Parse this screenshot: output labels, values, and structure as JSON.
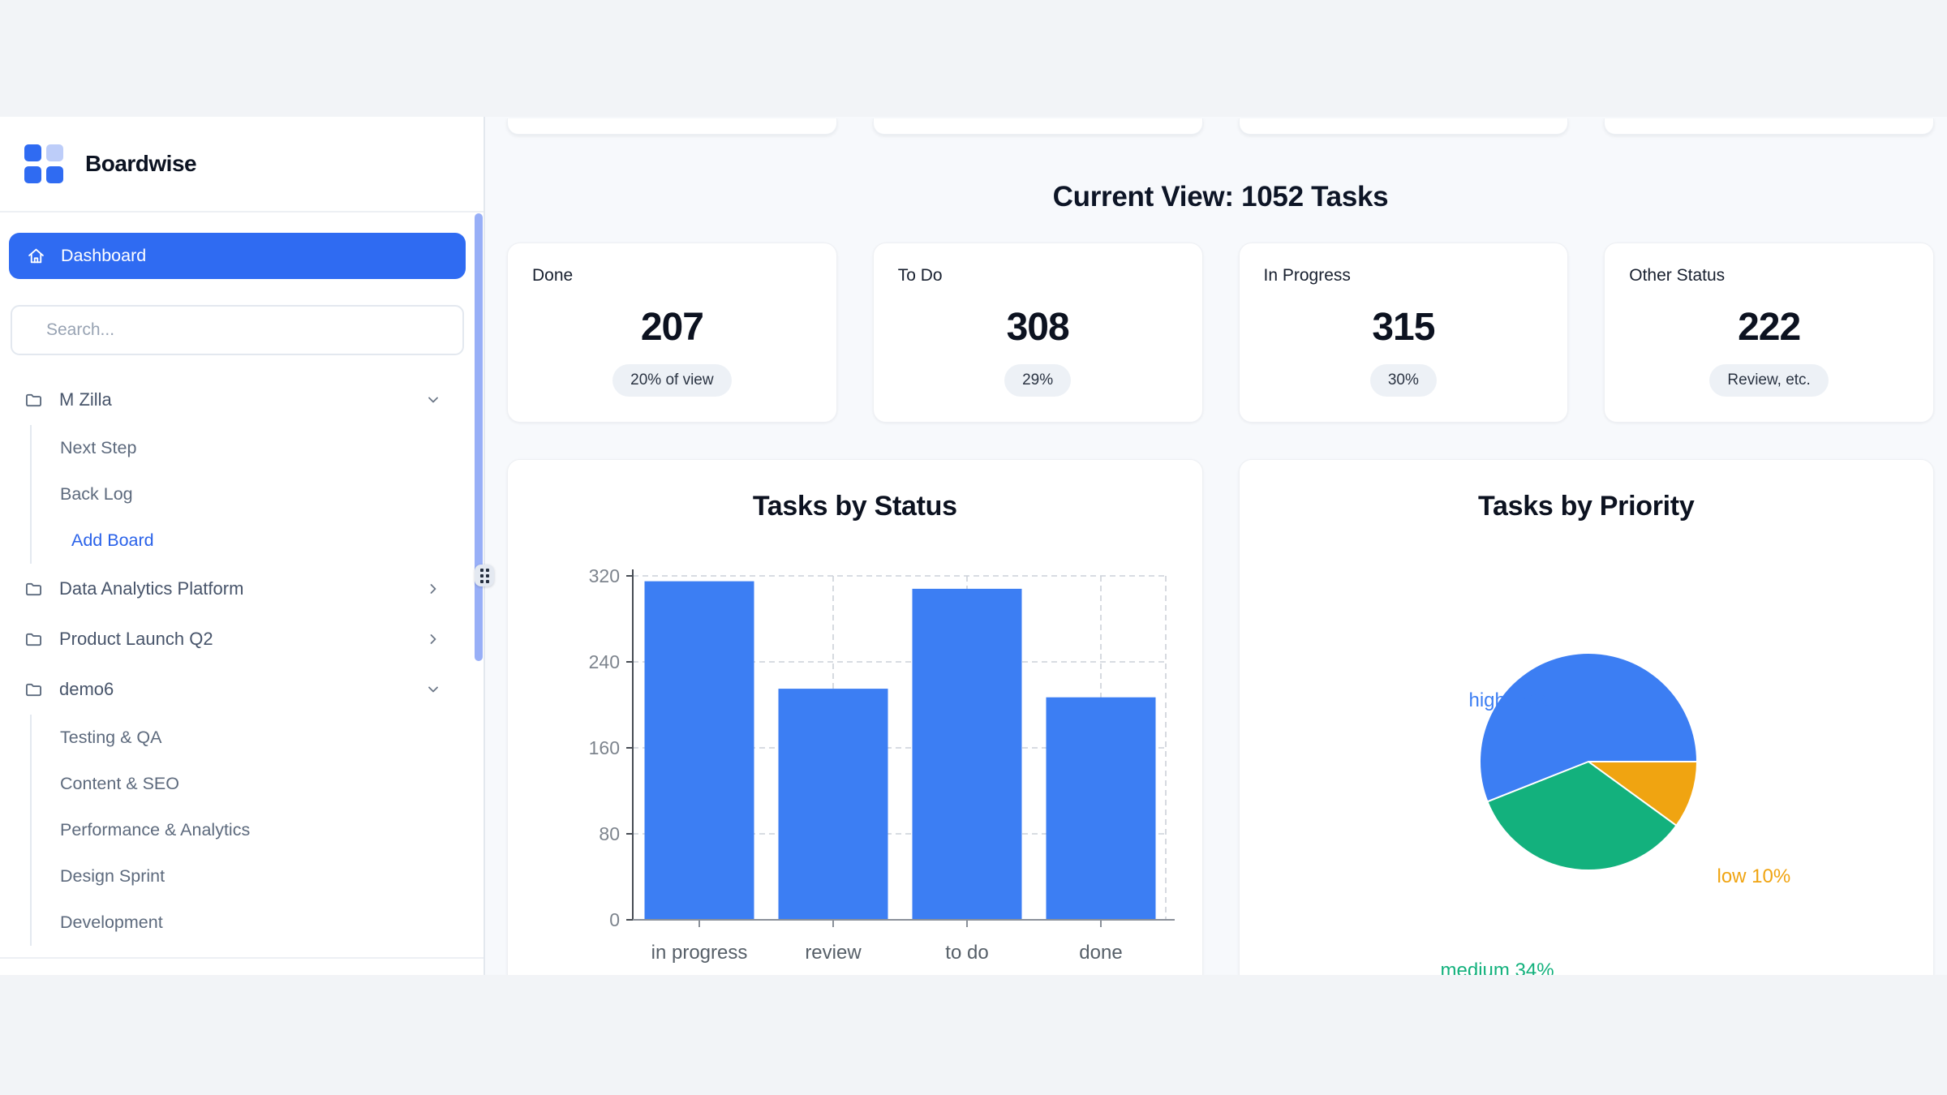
{
  "app": {
    "title": "Boardwise"
  },
  "sidebar": {
    "logo_title": "Boardwise",
    "dashboard_label": "Dashboard",
    "search_placeholder": "Search...",
    "tree": [
      {
        "label": "M Zilla",
        "state": "expanded",
        "children": [
          "Next Step",
          "Back Log"
        ],
        "action": "Add Board"
      },
      {
        "label": "Data Analytics Platform",
        "state": "collapsed"
      },
      {
        "label": "Product Launch Q2",
        "state": "collapsed"
      },
      {
        "label": "demo6",
        "state": "expanded",
        "children": [
          "Testing & QA",
          "Content & SEO",
          "Performance & Analytics",
          "Design Sprint",
          "Development"
        ]
      }
    ]
  },
  "main": {
    "heading": "Current View: 1052 Tasks",
    "stats": [
      {
        "label": "Done",
        "value": "207",
        "badge": "20% of view"
      },
      {
        "label": "To Do",
        "value": "308",
        "badge": "29%"
      },
      {
        "label": "In Progress",
        "value": "315",
        "badge": "30%"
      },
      {
        "label": "Other Status",
        "value": "222",
        "badge": "Review, etc."
      }
    ]
  },
  "colors": {
    "accent_blue": "#2f6bf2",
    "bar_blue": "#3C7EF3",
    "pie_green": "#13B17D",
    "pie_orange": "#F0A411",
    "sidebar_scrollbar": "#98aff7"
  },
  "chart_data": [
    {
      "type": "bar",
      "title": "Tasks by Status",
      "categories": [
        "in progress",
        "review",
        "to do",
        "done"
      ],
      "values": [
        315,
        215,
        308,
        207
      ],
      "ylim": [
        0,
        320
      ],
      "yticks": [
        0,
        80,
        160,
        240,
        320
      ],
      "bar_color": "#3C7EF3",
      "grid": "dashed",
      "legend": "none"
    },
    {
      "type": "pie",
      "title": "Tasks by Priority",
      "start_deg": 90,
      "slices": [
        {
          "label": "low",
          "pct": 10,
          "color": "#F0A411"
        },
        {
          "label": "medium",
          "pct": 34,
          "color": "#13B17D"
        },
        {
          "label": "high",
          "pct": 56,
          "color": "#3C7EF3"
        }
      ],
      "annotations": [
        "high 56%",
        "medium 34%",
        "low 10%"
      ],
      "legend": "outside-labels"
    }
  ]
}
